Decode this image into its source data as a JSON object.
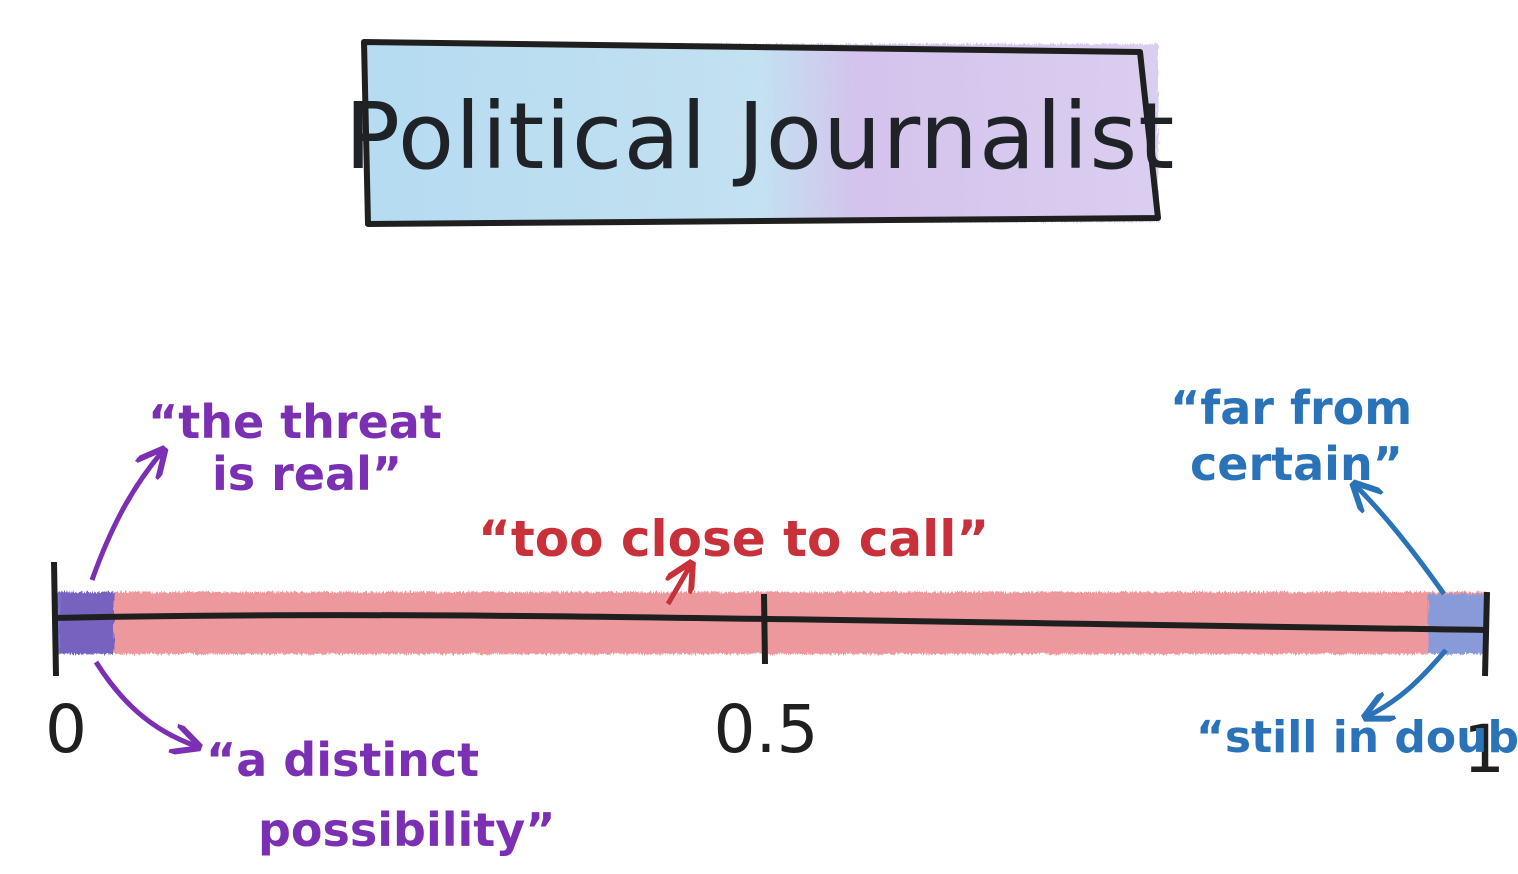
{
  "title": "Political Journalist",
  "scale": {
    "min_label": "0",
    "mid_label": "0.5",
    "max_label": "1"
  },
  "phrases": {
    "threat_line1": "“the threat",
    "threat_line2": "is real”",
    "distinct_line1": "“a distinct",
    "distinct_line2": "possibility”",
    "close_call": "“too close to call”",
    "far_line1": "“far from",
    "far_line2": "certain”",
    "still_doubt": "“still in doubt”"
  },
  "colors": {
    "purple": "#7b2fb3",
    "red": "#c8303a",
    "blue": "#2b73b8",
    "title_box_left": "#a9d3ec",
    "title_box_right": "#c9b8e8"
  }
}
